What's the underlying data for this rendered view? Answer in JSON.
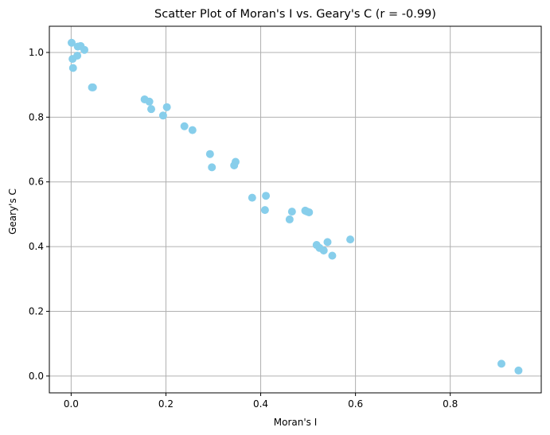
{
  "chart_data": {
    "type": "scatter",
    "title": "Scatter Plot of Moran's I vs. Geary's C (r = -0.99)",
    "xlabel": "Moran's I",
    "ylabel": "Geary's C",
    "xlim": [
      -0.046,
      0.992
    ],
    "ylim": [
      -0.052,
      1.081
    ],
    "xticks": [
      0.0,
      0.2,
      0.4,
      0.6,
      0.8
    ],
    "xtick_labels": [
      "0.0",
      "0.2",
      "0.4",
      "0.6",
      "0.8"
    ],
    "yticks": [
      0.0,
      0.2,
      0.4,
      0.6,
      0.8,
      1.0
    ],
    "ytick_labels": [
      "0.0",
      "0.2",
      "0.4",
      "0.6",
      "0.8",
      "1.0"
    ],
    "grid": true,
    "marker_color": "#87ceeb",
    "points": [
      {
        "x": 0.001,
        "y": 1.03
      },
      {
        "x": 0.02,
        "y": 1.02
      },
      {
        "x": 0.014,
        "y": 1.018
      },
      {
        "x": 0.028,
        "y": 1.008
      },
      {
        "x": 0.013,
        "y": 0.99
      },
      {
        "x": 0.003,
        "y": 0.98
      },
      {
        "x": 0.004,
        "y": 0.952
      },
      {
        "x": 0.044,
        "y": 0.892
      },
      {
        "x": 0.046,
        "y": 0.892
      },
      {
        "x": 0.155,
        "y": 0.855
      },
      {
        "x": 0.165,
        "y": 0.848
      },
      {
        "x": 0.169,
        "y": 0.825
      },
      {
        "x": 0.202,
        "y": 0.831
      },
      {
        "x": 0.194,
        "y": 0.805
      },
      {
        "x": 0.239,
        "y": 0.772
      },
      {
        "x": 0.256,
        "y": 0.76
      },
      {
        "x": 0.293,
        "y": 0.686
      },
      {
        "x": 0.297,
        "y": 0.645
      },
      {
        "x": 0.344,
        "y": 0.651
      },
      {
        "x": 0.347,
        "y": 0.662
      },
      {
        "x": 0.382,
        "y": 0.551
      },
      {
        "x": 0.411,
        "y": 0.557
      },
      {
        "x": 0.409,
        "y": 0.513
      },
      {
        "x": 0.466,
        "y": 0.508
      },
      {
        "x": 0.461,
        "y": 0.484
      },
      {
        "x": 0.494,
        "y": 0.511
      },
      {
        "x": 0.498,
        "y": 0.508
      },
      {
        "x": 0.502,
        "y": 0.506
      },
      {
        "x": 0.518,
        "y": 0.405
      },
      {
        "x": 0.524,
        "y": 0.396
      },
      {
        "x": 0.533,
        "y": 0.388
      },
      {
        "x": 0.541,
        "y": 0.414
      },
      {
        "x": 0.551,
        "y": 0.372
      },
      {
        "x": 0.589,
        "y": 0.422
      },
      {
        "x": 0.908,
        "y": 0.038
      },
      {
        "x": 0.944,
        "y": 0.017
      }
    ]
  }
}
